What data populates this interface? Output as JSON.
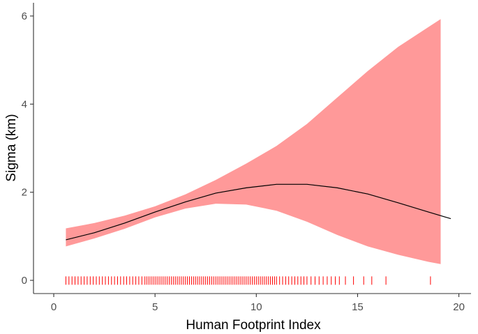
{
  "chart_data": {
    "type": "line",
    "title": "",
    "xlabel": "Human Footprint Index",
    "ylabel": "Sigma (km)",
    "xlim": [
      -1.0,
      20.6
    ],
    "ylim": [
      -0.3,
      6.3
    ],
    "xticks": [
      0,
      5,
      10,
      15,
      20
    ],
    "yticks": [
      0,
      2,
      4,
      6
    ],
    "grid": false,
    "legend": "none",
    "colors": {
      "ribbon": "#ff9999",
      "line": "#000000",
      "rug": "#ff0000",
      "axis": "#333333"
    },
    "series": [
      {
        "type": "line",
        "x": [
          0.6,
          2,
          3.5,
          5,
          6.5,
          8,
          9.5,
          11,
          12.5,
          14,
          15.5,
          17,
          18.5,
          19.6
        ],
        "y": [
          0.92,
          1.08,
          1.3,
          1.55,
          1.78,
          1.98,
          2.1,
          2.18,
          2.18,
          2.1,
          1.96,
          1.76,
          1.55,
          1.4
        ]
      },
      {
        "type": "ribbon",
        "x": [
          0.6,
          2,
          3.5,
          5,
          6.5,
          8,
          9.5,
          11,
          12.5,
          14,
          15.5,
          17,
          18.5,
          19.1
        ],
        "upper": [
          1.18,
          1.3,
          1.47,
          1.68,
          1.95,
          2.28,
          2.65,
          3.05,
          3.55,
          4.15,
          4.75,
          5.3,
          5.75,
          5.93
        ],
        "lower": [
          0.77,
          0.95,
          1.17,
          1.43,
          1.63,
          1.74,
          1.72,
          1.58,
          1.33,
          1.03,
          0.77,
          0.58,
          0.42,
          0.37
        ]
      }
    ],
    "rug": {
      "y": -0.1,
      "x": [
        0.6,
        0.75,
        0.9,
        1.05,
        1.2,
        1.35,
        1.5,
        1.65,
        1.8,
        1.95,
        2.1,
        2.25,
        2.4,
        2.55,
        2.7,
        2.85,
        3.0,
        3.15,
        3.3,
        3.45,
        3.6,
        3.75,
        3.9,
        4.05,
        4.2,
        4.35,
        4.5,
        4.6,
        4.7,
        4.8,
        4.9,
        5.0,
        5.1,
        5.2,
        5.3,
        5.4,
        5.5,
        5.6,
        5.7,
        5.8,
        5.9,
        6.0,
        6.1,
        6.2,
        6.3,
        6.4,
        6.5,
        6.6,
        6.7,
        6.8,
        6.9,
        7.0,
        7.1,
        7.2,
        7.3,
        7.4,
        7.5,
        7.6,
        7.7,
        7.8,
        7.9,
        8.0,
        8.1,
        8.2,
        8.3,
        8.4,
        8.5,
        8.6,
        8.7,
        8.8,
        8.9,
        9.0,
        9.1,
        9.2,
        9.3,
        9.4,
        9.5,
        9.6,
        9.7,
        9.8,
        9.9,
        10.0,
        10.1,
        10.2,
        10.3,
        10.4,
        10.5,
        10.6,
        10.7,
        10.8,
        10.9,
        11.0,
        11.15,
        11.3,
        11.45,
        11.6,
        11.75,
        11.9,
        12.05,
        12.2,
        12.35,
        12.5,
        12.7,
        12.9,
        13.1,
        13.3,
        13.5,
        13.7,
        13.9,
        14.1,
        14.4,
        14.8,
        15.3,
        15.7,
        16.4,
        18.6
      ]
    }
  }
}
